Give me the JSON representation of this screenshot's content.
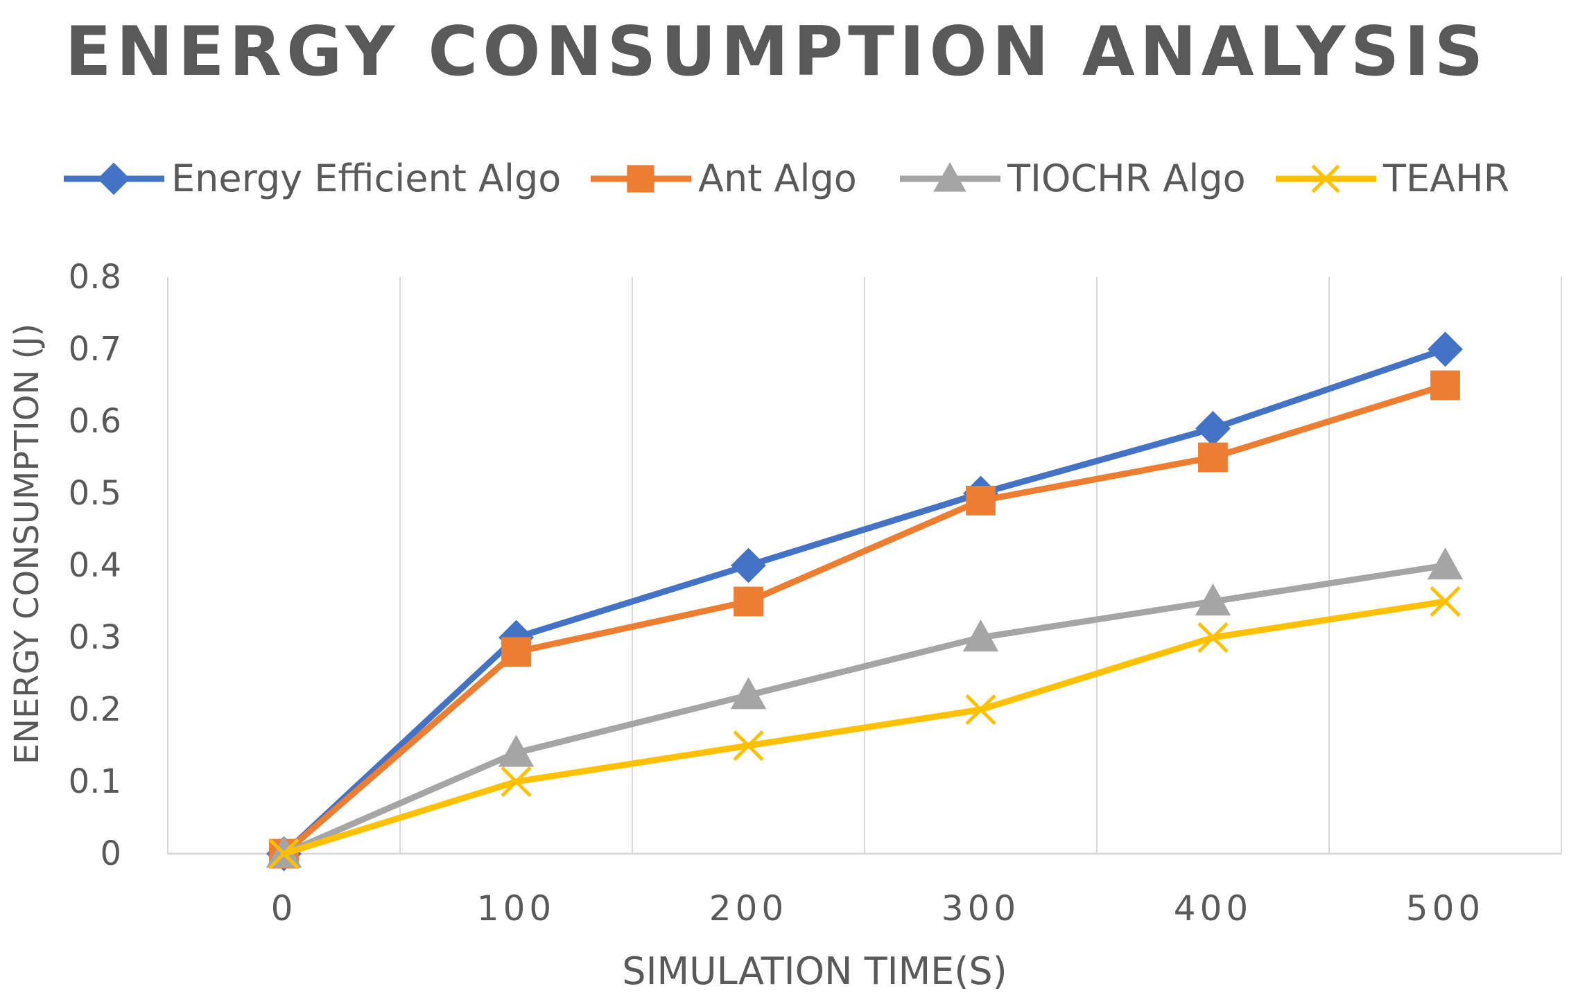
{
  "chart_data": {
    "type": "line",
    "title": "ENERGY CONSUMPTION ANALYSIS",
    "xlabel": "SIMULATION TIME(S)",
    "ylabel": "ENERGY CONSUMPTION (J)",
    "categories": [
      "0",
      "100",
      "200",
      "300",
      "400",
      "500"
    ],
    "yticks": [
      "0",
      "0.1",
      "0.2",
      "0.3",
      "0.4",
      "0.5",
      "0.6",
      "0.7",
      "0.8"
    ],
    "ylim": [
      0,
      0.8
    ],
    "grid": "vertical",
    "legend_position": "top",
    "series": [
      {
        "name": "Energy Efficient Algo",
        "color": "#4472C4",
        "marker": "diamond",
        "values": [
          0,
          0.3,
          0.4,
          0.5,
          0.59,
          0.7
        ]
      },
      {
        "name": "Ant Algo",
        "color": "#ED7D31",
        "marker": "square",
        "values": [
          0,
          0.28,
          0.35,
          0.49,
          0.55,
          0.65
        ]
      },
      {
        "name": "TIOCHR Algo",
        "color": "#A5A5A5",
        "marker": "triangle",
        "values": [
          0,
          0.14,
          0.22,
          0.3,
          0.35,
          0.4
        ]
      },
      {
        "name": "TEAHR",
        "color": "#FFC000",
        "marker": "x",
        "values": [
          0,
          0.1,
          0.15,
          0.2,
          0.3,
          0.35
        ]
      }
    ]
  }
}
